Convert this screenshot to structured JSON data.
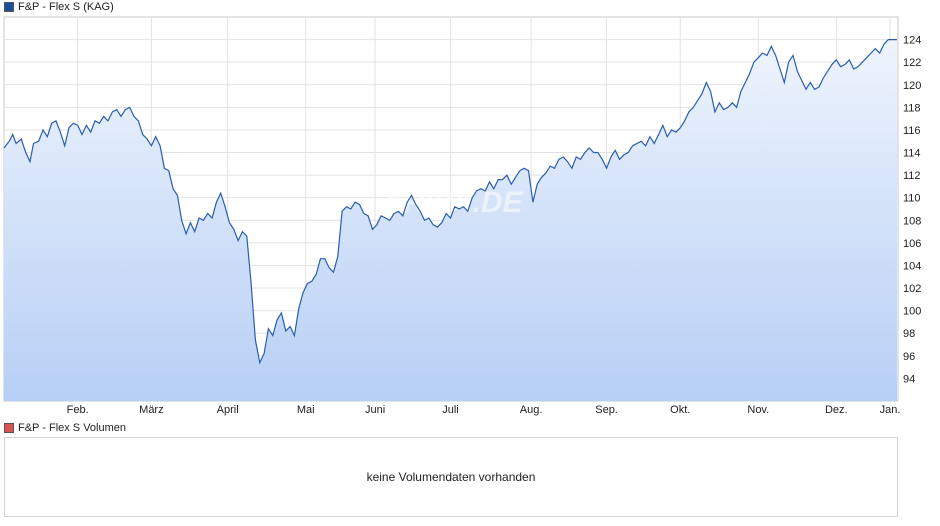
{
  "price_legend": {
    "label": "F&P - Flex S (KAG)",
    "color": "#1e4d9c"
  },
  "volume_legend": {
    "label": "F&P - Flex S Volumen",
    "color": "#d9534f"
  },
  "volume_message": "keine Volumendaten vorhanden",
  "watermark": "ARIVA.DE",
  "chart_data": {
    "type": "area",
    "title": "",
    "xlabel": "",
    "ylabel": "",
    "ylim": [
      92,
      126
    ],
    "y_ticks": [
      94,
      96,
      98,
      100,
      102,
      104,
      106,
      108,
      110,
      112,
      114,
      116,
      118,
      120,
      122,
      124
    ],
    "x_ticks": [
      "Feb.",
      "März",
      "April",
      "Mai",
      "Juni",
      "Juli",
      "Aug.",
      "Sep.",
      "Okt.",
      "Nov.",
      "Dez.",
      "Jan."
    ],
    "grid": true,
    "line_color": "#2a5db0",
    "fill_top_color": "#eef4fd",
    "fill_bottom_color": "#b7cff5",
    "series": [
      {
        "points": [
          [
            0.0,
            114.4
          ],
          [
            0.6,
            115.0
          ],
          [
            1.0,
            115.6
          ],
          [
            1.4,
            114.8
          ],
          [
            2.0,
            115.2
          ],
          [
            2.5,
            114.0
          ],
          [
            3.0,
            113.2
          ],
          [
            3.4,
            114.8
          ],
          [
            4.0,
            115.0
          ],
          [
            4.5,
            116.0
          ],
          [
            5.0,
            115.4
          ],
          [
            5.5,
            116.6
          ],
          [
            6.0,
            116.8
          ],
          [
            6.5,
            115.8
          ],
          [
            7.0,
            114.6
          ],
          [
            7.5,
            116.2
          ],
          [
            8.0,
            116.6
          ],
          [
            8.5,
            116.4
          ],
          [
            9.0,
            115.6
          ],
          [
            9.5,
            116.4
          ],
          [
            10.0,
            115.8
          ],
          [
            10.5,
            116.8
          ],
          [
            11.0,
            116.6
          ],
          [
            11.5,
            117.2
          ],
          [
            12.0,
            116.8
          ],
          [
            12.5,
            117.6
          ],
          [
            13.0,
            117.8
          ],
          [
            13.5,
            117.2
          ],
          [
            14.0,
            117.8
          ],
          [
            14.5,
            118.0
          ],
          [
            15.0,
            117.2
          ],
          [
            15.5,
            116.8
          ],
          [
            16.0,
            115.6
          ],
          [
            16.5,
            115.2
          ],
          [
            17.0,
            114.6
          ],
          [
            17.5,
            115.4
          ],
          [
            18.0,
            114.6
          ],
          [
            18.5,
            112.6
          ],
          [
            19.0,
            112.4
          ],
          [
            19.5,
            110.8
          ],
          [
            20.0,
            110.2
          ],
          [
            20.5,
            108.0
          ],
          [
            21.0,
            106.8
          ],
          [
            21.5,
            107.8
          ],
          [
            22.0,
            107.0
          ],
          [
            22.5,
            108.2
          ],
          [
            23.0,
            108.0
          ],
          [
            23.5,
            108.6
          ],
          [
            24.0,
            108.2
          ],
          [
            24.5,
            109.6
          ],
          [
            25.0,
            110.4
          ],
          [
            25.5,
            109.2
          ],
          [
            26.0,
            107.8
          ],
          [
            26.5,
            107.2
          ],
          [
            27.0,
            106.2
          ],
          [
            27.5,
            107.0
          ],
          [
            28.0,
            106.6
          ],
          [
            28.5,
            102.4
          ],
          [
            29.0,
            97.4
          ],
          [
            29.5,
            95.4
          ],
          [
            30.0,
            96.2
          ],
          [
            30.5,
            98.4
          ],
          [
            31.0,
            97.8
          ],
          [
            31.5,
            99.2
          ],
          [
            32.0,
            99.8
          ],
          [
            32.5,
            98.2
          ],
          [
            33.0,
            98.6
          ],
          [
            33.5,
            97.8
          ],
          [
            34.0,
            100.2
          ],
          [
            34.5,
            101.6
          ],
          [
            35.0,
            102.4
          ],
          [
            35.5,
            102.6
          ],
          [
            36.0,
            103.2
          ],
          [
            36.5,
            104.6
          ],
          [
            37.0,
            104.6
          ],
          [
            37.5,
            103.8
          ],
          [
            38.0,
            103.4
          ],
          [
            38.5,
            104.8
          ],
          [
            39.0,
            108.8
          ],
          [
            39.5,
            109.2
          ],
          [
            40.0,
            109.0
          ],
          [
            40.5,
            109.6
          ],
          [
            41.0,
            109.4
          ],
          [
            41.5,
            108.6
          ],
          [
            42.0,
            108.4
          ],
          [
            42.5,
            107.2
          ],
          [
            43.0,
            107.6
          ],
          [
            43.5,
            108.4
          ],
          [
            44.0,
            108.2
          ],
          [
            44.5,
            108.0
          ],
          [
            45.0,
            108.6
          ],
          [
            45.5,
            108.8
          ],
          [
            46.0,
            108.4
          ],
          [
            46.5,
            109.6
          ],
          [
            47.0,
            110.2
          ],
          [
            47.5,
            109.4
          ],
          [
            48.0,
            108.8
          ],
          [
            48.5,
            108.0
          ],
          [
            49.0,
            108.2
          ],
          [
            49.5,
            107.6
          ],
          [
            50.0,
            107.4
          ],
          [
            50.5,
            107.8
          ],
          [
            51.0,
            108.6
          ],
          [
            51.5,
            108.2
          ],
          [
            52.0,
            109.2
          ],
          [
            52.5,
            109.0
          ],
          [
            53.0,
            109.2
          ],
          [
            53.5,
            108.8
          ],
          [
            54.0,
            110.0
          ],
          [
            54.5,
            110.6
          ],
          [
            55.0,
            110.8
          ],
          [
            55.5,
            110.6
          ],
          [
            56.0,
            111.4
          ],
          [
            56.5,
            110.8
          ],
          [
            57.0,
            111.6
          ],
          [
            57.5,
            111.6
          ],
          [
            58.0,
            112.0
          ],
          [
            58.5,
            111.2
          ],
          [
            59.0,
            111.8
          ],
          [
            59.5,
            112.4
          ],
          [
            60.0,
            112.6
          ],
          [
            60.5,
            112.4
          ],
          [
            61.0,
            109.6
          ],
          [
            61.5,
            111.2
          ],
          [
            62.0,
            111.8
          ],
          [
            62.5,
            112.2
          ],
          [
            63.0,
            112.8
          ],
          [
            63.5,
            112.6
          ],
          [
            64.0,
            113.4
          ],
          [
            64.5,
            113.6
          ],
          [
            65.0,
            113.2
          ],
          [
            65.5,
            112.6
          ],
          [
            66.0,
            113.6
          ],
          [
            66.5,
            113.4
          ],
          [
            67.0,
            114.0
          ],
          [
            67.5,
            114.4
          ],
          [
            68.0,
            114.0
          ],
          [
            68.5,
            114.0
          ],
          [
            69.0,
            113.4
          ],
          [
            69.5,
            112.6
          ],
          [
            70.0,
            113.6
          ],
          [
            70.5,
            114.2
          ],
          [
            71.0,
            113.4
          ],
          [
            71.5,
            113.8
          ],
          [
            72.0,
            114.0
          ],
          [
            72.5,
            114.6
          ],
          [
            73.0,
            114.8
          ],
          [
            73.5,
            115.0
          ],
          [
            74.0,
            114.6
          ],
          [
            74.5,
            115.4
          ],
          [
            75.0,
            114.8
          ],
          [
            75.5,
            115.6
          ],
          [
            76.0,
            116.4
          ],
          [
            76.5,
            115.4
          ],
          [
            77.0,
            116.0
          ],
          [
            77.5,
            115.8
          ],
          [
            78.0,
            116.2
          ],
          [
            78.5,
            116.8
          ],
          [
            79.0,
            117.6
          ],
          [
            79.5,
            118.0
          ],
          [
            80.0,
            118.6
          ],
          [
            80.5,
            119.2
          ],
          [
            81.0,
            120.2
          ],
          [
            81.5,
            119.4
          ],
          [
            82.0,
            117.6
          ],
          [
            82.5,
            118.4
          ],
          [
            83.0,
            117.8
          ],
          [
            83.5,
            118.0
          ],
          [
            84.0,
            118.4
          ],
          [
            84.5,
            118.0
          ],
          [
            85.0,
            119.4
          ],
          [
            85.5,
            120.2
          ],
          [
            86.0,
            121.0
          ],
          [
            86.5,
            122.0
          ],
          [
            87.0,
            122.4
          ],
          [
            87.5,
            122.8
          ],
          [
            88.0,
            122.6
          ],
          [
            88.5,
            123.4
          ],
          [
            89.0,
            122.6
          ],
          [
            89.5,
            121.4
          ],
          [
            90.0,
            120.2
          ],
          [
            90.5,
            122.0
          ],
          [
            91.0,
            122.6
          ],
          [
            91.5,
            121.2
          ],
          [
            92.0,
            120.4
          ],
          [
            92.5,
            119.6
          ],
          [
            93.0,
            120.2
          ],
          [
            93.5,
            119.6
          ],
          [
            94.0,
            119.8
          ],
          [
            94.5,
            120.6
          ],
          [
            95.0,
            121.2
          ],
          [
            95.5,
            121.8
          ],
          [
            96.0,
            122.2
          ],
          [
            96.5,
            121.6
          ],
          [
            97.0,
            121.8
          ],
          [
            97.5,
            122.2
          ],
          [
            98.0,
            121.4
          ],
          [
            98.5,
            121.6
          ],
          [
            99.0,
            122.0
          ],
          [
            99.5,
            122.4
          ],
          [
            100.0,
            122.8
          ],
          [
            100.5,
            123.2
          ],
          [
            101.0,
            122.8
          ],
          [
            101.5,
            123.6
          ],
          [
            102.0,
            124.0
          ],
          [
            102.5,
            124.0
          ],
          [
            103.0,
            124.0
          ]
        ]
      }
    ]
  }
}
